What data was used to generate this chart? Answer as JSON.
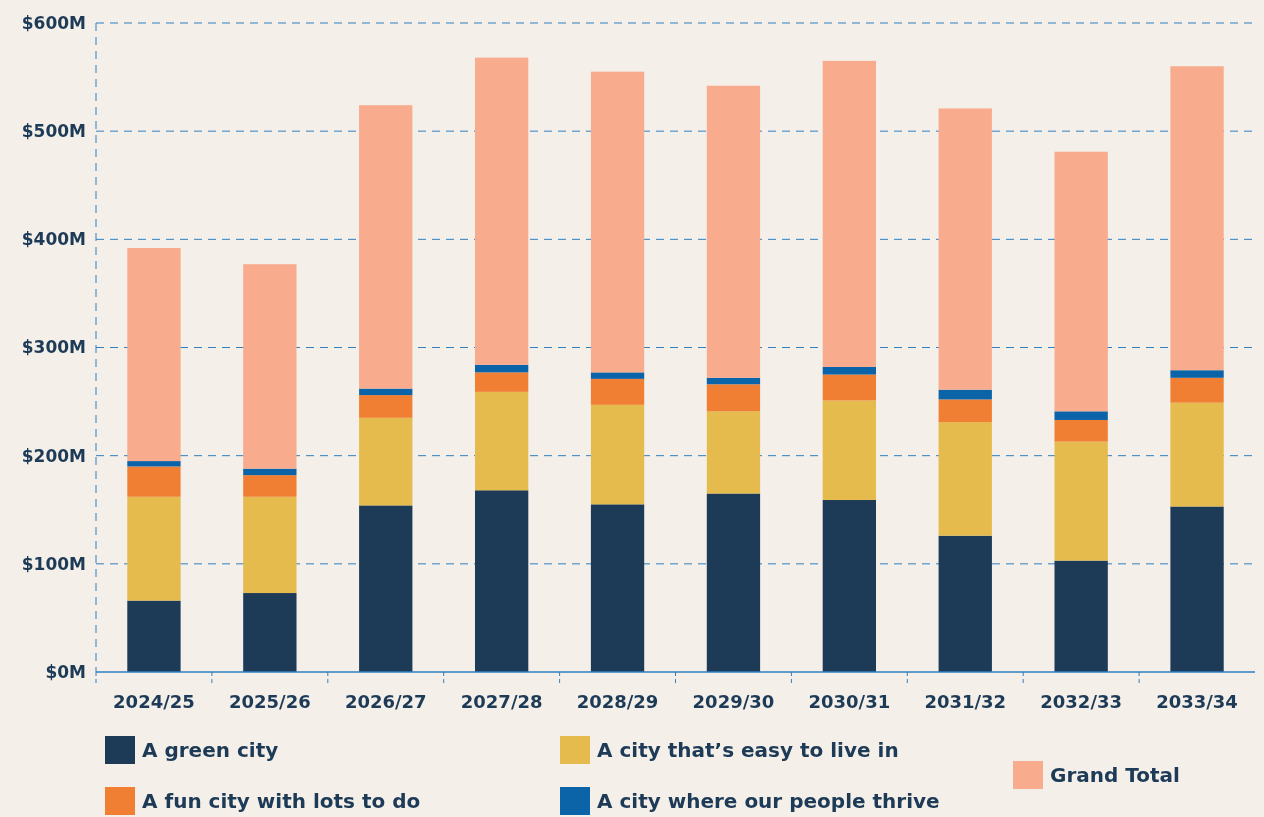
{
  "chart_data": {
    "type": "bar",
    "stacked": true,
    "categories": [
      "2024/25",
      "2025/26",
      "2026/27",
      "2027/28",
      "2028/29",
      "2029/30",
      "2030/31",
      "2031/32",
      "2032/33",
      "2033/34"
    ],
    "series": [
      {
        "name": "A green city",
        "color": "#1d3a57",
        "values": [
          66,
          73,
          154,
          168,
          155,
          165,
          159,
          126,
          103,
          153
        ]
      },
      {
        "name": "A city that’s easy to live in",
        "color": "#e4bb4c",
        "values": [
          96,
          89,
          81,
          91,
          92,
          76,
          92,
          105,
          110,
          96
        ]
      },
      {
        "name": "A fun city with lots to do",
        "color": "#f07f33",
        "values": [
          28,
          20,
          21,
          18,
          24,
          25,
          24,
          21,
          20,
          23
        ]
      },
      {
        "name": "A city where our people thrive",
        "color": "#0b64a8",
        "values": [
          5,
          6,
          6,
          7,
          6,
          6,
          7,
          9,
          8,
          7
        ]
      },
      {
        "name": "Grand Total",
        "color": "#f8ab8d",
        "values": [
          197,
          189,
          262,
          284,
          278,
          270,
          283,
          260,
          240,
          281
        ]
      }
    ],
    "ylim": [
      0,
      600
    ],
    "yticks": [
      {
        "value": 0,
        "label": "$0M"
      },
      {
        "value": 100,
        "label": "$100M"
      },
      {
        "value": 200,
        "label": "$200M"
      },
      {
        "value": 300,
        "label": "$300M"
      },
      {
        "value": 400,
        "label": "$400M"
      },
      {
        "value": 500,
        "label": "$500M"
      },
      {
        "value": 600,
        "label": "$600M"
      }
    ],
    "grid": "y",
    "legend": "bottom"
  }
}
